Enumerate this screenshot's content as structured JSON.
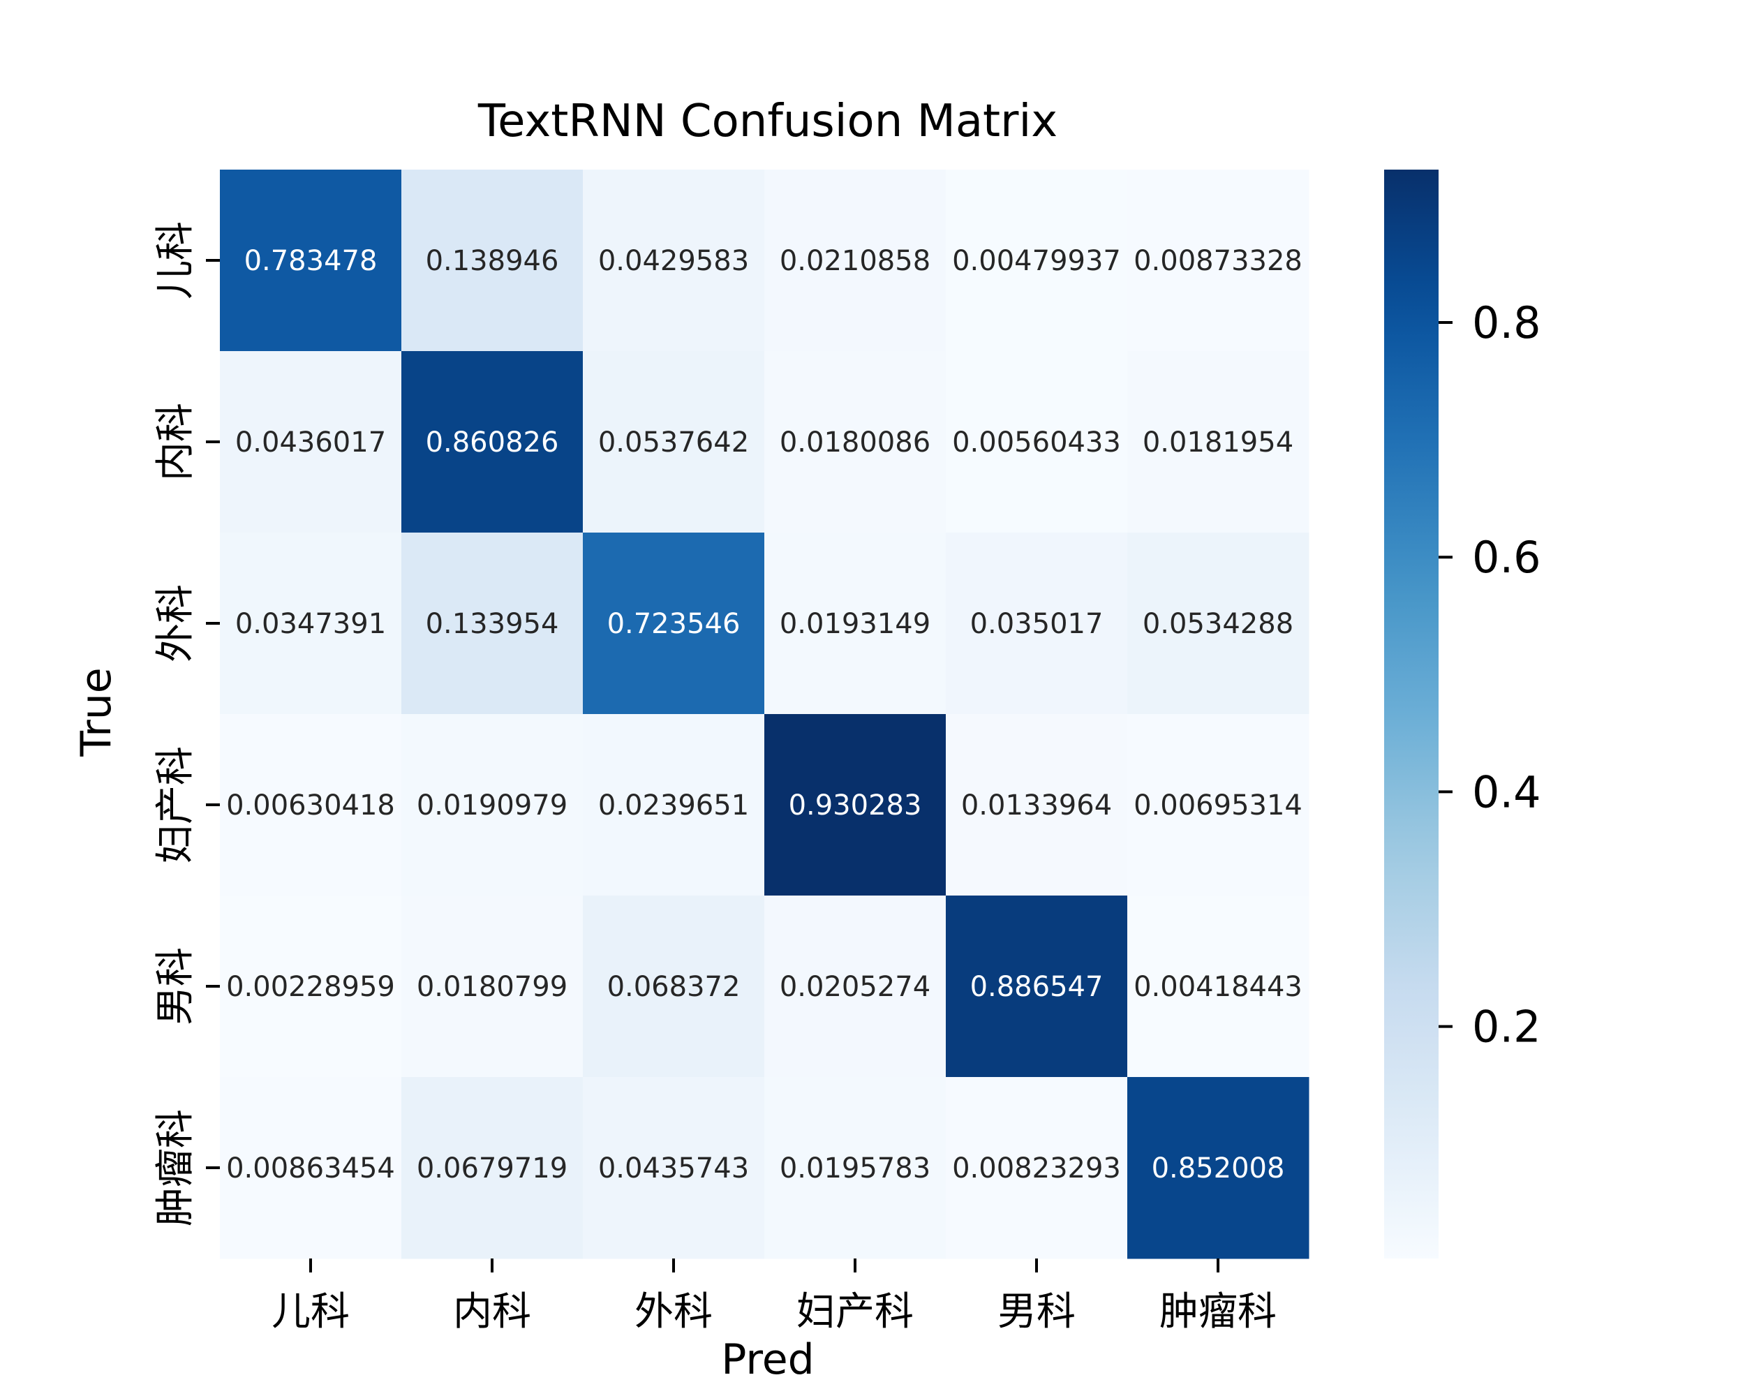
{
  "chart_data": {
    "type": "heatmap",
    "title": "TextRNN Confusion Matrix",
    "xlabel": "Pred",
    "ylabel": "True",
    "x_categories": [
      "儿科",
      "内科",
      "外科",
      "妇产科",
      "男科",
      "肿瘤科"
    ],
    "y_categories": [
      "儿科",
      "内科",
      "外科",
      "妇产科",
      "男科",
      "肿瘤科"
    ],
    "values": [
      [
        0.783478,
        0.138946,
        0.0429583,
        0.0210858,
        0.00479937,
        0.00873328
      ],
      [
        0.0436017,
        0.860826,
        0.0537642,
        0.0180086,
        0.00560433,
        0.0181954
      ],
      [
        0.0347391,
        0.133954,
        0.723546,
        0.0193149,
        0.035017,
        0.0534288
      ],
      [
        0.00630418,
        0.0190979,
        0.0239651,
        0.930283,
        0.0133964,
        0.00695314
      ],
      [
        0.00228959,
        0.0180799,
        0.068372,
        0.0205274,
        0.886547,
        0.00418443
      ],
      [
        0.00863454,
        0.0679719,
        0.0435743,
        0.0195783,
        0.00823293,
        0.852008
      ]
    ],
    "value_labels": [
      [
        "0.783478",
        "0.138946",
        "0.0429583",
        "0.0210858",
        "0.00479937",
        "0.00873328"
      ],
      [
        "0.0436017",
        "0.860826",
        "0.0537642",
        "0.0180086",
        "0.00560433",
        "0.0181954"
      ],
      [
        "0.0347391",
        "0.133954",
        "0.723546",
        "0.0193149",
        "0.035017",
        "0.0534288"
      ],
      [
        "0.00630418",
        "0.0190979",
        "0.0239651",
        "0.930283",
        "0.0133964",
        "0.00695314"
      ],
      [
        "0.00228959",
        "0.0180799",
        "0.068372",
        "0.0205274",
        "0.886547",
        "0.00418443"
      ],
      [
        "0.00863454",
        "0.0679719",
        "0.0435743",
        "0.0195783",
        "0.00823293",
        "0.852008"
      ]
    ],
    "colormap": "Blues",
    "colorbar": {
      "min": 0.00228959,
      "max": 0.930283,
      "ticks": [
        0.2,
        0.4,
        0.6,
        0.8
      ],
      "tick_labels": [
        "0.2",
        "0.4",
        "0.6",
        "0.8"
      ]
    },
    "grid": false,
    "legend": "colorbar-right"
  }
}
